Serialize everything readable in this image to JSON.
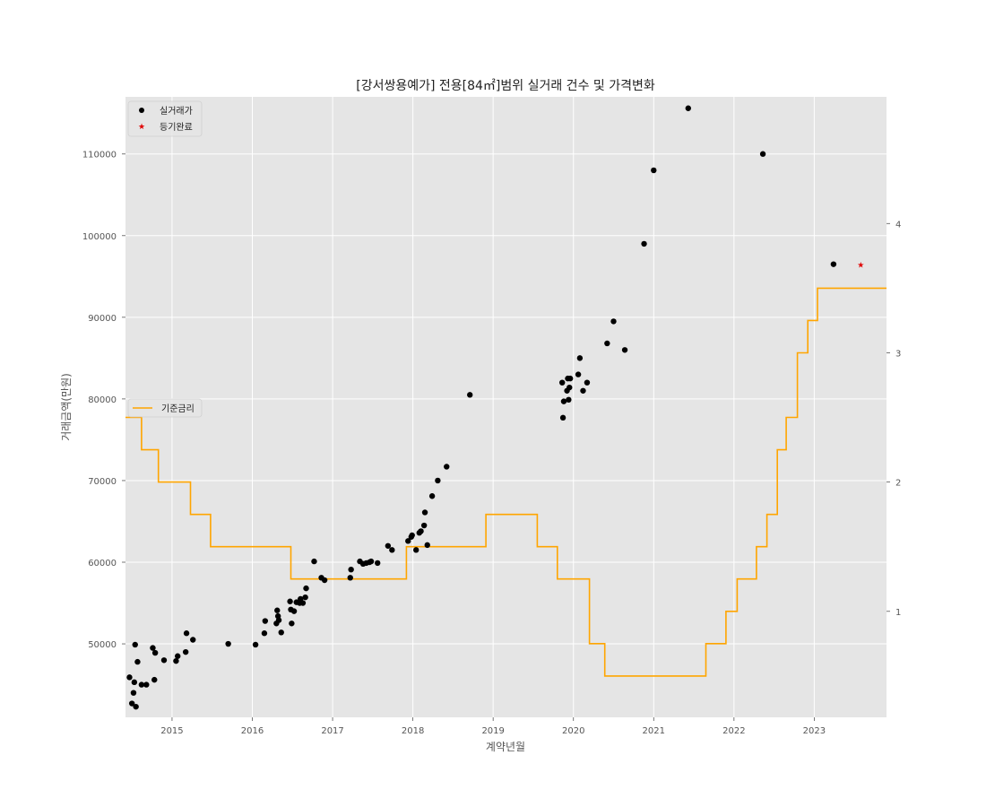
{
  "chart_data": {
    "type": "scatter",
    "title": "[강서쌍용예가] 전용[84㎡]범위 실거래 건수 및 가격변화",
    "xlabel": "계약년월",
    "ylabel": "거래금액(만원)",
    "xlim": [
      2014.42,
      2023.9
    ],
    "ylim": [
      41000,
      117000
    ],
    "y2lim": [
      0.18,
      4.98
    ],
    "xticks": [
      2015,
      2016,
      2017,
      2018,
      2019,
      2020,
      2021,
      2022,
      2023
    ],
    "xtick_labels": [
      "2015",
      "2016",
      "2017",
      "2018",
      "2019",
      "2020",
      "2021",
      "2022",
      "2023"
    ],
    "yticks": [
      50000,
      60000,
      70000,
      80000,
      90000,
      100000,
      110000
    ],
    "ytick_labels": [
      "50000",
      "60000",
      "70000",
      "80000",
      "90000",
      "100000",
      "110000"
    ],
    "y2ticks": [
      1,
      2,
      3,
      4
    ],
    "y2tick_labels": [
      "1",
      "2",
      "3",
      "4"
    ],
    "grid": true,
    "background": "#e5e5e5",
    "legend_top": {
      "placement": "top-left",
      "entries": [
        {
          "label": "실거래가",
          "marker": "circle",
          "color": "#000000"
        },
        {
          "label": "등기완료",
          "marker": "star",
          "color": "#e00000"
        }
      ]
    },
    "legend_mid": {
      "placement": "center-left",
      "entries": [
        {
          "label": "기준금리",
          "marker": "line",
          "color": "#ffa500"
        }
      ]
    },
    "series": [
      {
        "name": "실거래가",
        "type": "scatter",
        "color": "#000000",
        "points": [
          [
            2014.47,
            45900
          ],
          [
            2014.5,
            42700
          ],
          [
            2014.52,
            44000
          ],
          [
            2014.53,
            45300
          ],
          [
            2014.54,
            49900
          ],
          [
            2014.55,
            42300
          ],
          [
            2014.57,
            47800
          ],
          [
            2014.62,
            45000
          ],
          [
            2014.68,
            45000
          ],
          [
            2014.76,
            49500
          ],
          [
            2014.78,
            45600
          ],
          [
            2014.79,
            48900
          ],
          [
            2014.9,
            48000
          ],
          [
            2015.05,
            47900
          ],
          [
            2015.07,
            48500
          ],
          [
            2015.17,
            49000
          ],
          [
            2015.18,
            51300
          ],
          [
            2015.26,
            50500
          ],
          [
            2015.7,
            50000
          ],
          [
            2016.04,
            49900
          ],
          [
            2016.15,
            51300
          ],
          [
            2016.16,
            52800
          ],
          [
            2016.3,
            52500
          ],
          [
            2016.31,
            54100
          ],
          [
            2016.32,
            53400
          ],
          [
            2016.33,
            52900
          ],
          [
            2016.36,
            51400
          ],
          [
            2016.47,
            55200
          ],
          [
            2016.48,
            54200
          ],
          [
            2016.49,
            52500
          ],
          [
            2016.52,
            54000
          ],
          [
            2016.55,
            55100
          ],
          [
            2016.59,
            55000
          ],
          [
            2016.6,
            55500
          ],
          [
            2016.63,
            55000
          ],
          [
            2016.66,
            55700
          ],
          [
            2016.67,
            56800
          ],
          [
            2016.77,
            60100
          ],
          [
            2016.86,
            58100
          ],
          [
            2016.9,
            57800
          ],
          [
            2017.22,
            58100
          ],
          [
            2017.23,
            59100
          ],
          [
            2017.34,
            60100
          ],
          [
            2017.38,
            59800
          ],
          [
            2017.42,
            59900
          ],
          [
            2017.46,
            60000
          ],
          [
            2017.48,
            60100
          ],
          [
            2017.56,
            59900
          ],
          [
            2017.69,
            62000
          ],
          [
            2017.74,
            61500
          ],
          [
            2017.94,
            62600
          ],
          [
            2017.98,
            63100
          ],
          [
            2017.99,
            63300
          ],
          [
            2018.04,
            61500
          ],
          [
            2018.08,
            63600
          ],
          [
            2018.1,
            63800
          ],
          [
            2018.14,
            64500
          ],
          [
            2018.15,
            66100
          ],
          [
            2018.18,
            62100
          ],
          [
            2018.24,
            68100
          ],
          [
            2018.31,
            70000
          ],
          [
            2018.42,
            71700
          ],
          [
            2018.71,
            80500
          ],
          [
            2019.86,
            82000
          ],
          [
            2019.87,
            77700
          ],
          [
            2019.88,
            79700
          ],
          [
            2019.92,
            81000
          ],
          [
            2019.93,
            82500
          ],
          [
            2019.94,
            79900
          ],
          [
            2019.95,
            81400
          ],
          [
            2019.96,
            82500
          ],
          [
            2020.06,
            83000
          ],
          [
            2020.08,
            85000
          ],
          [
            2020.12,
            81000
          ],
          [
            2020.17,
            82000
          ],
          [
            2020.42,
            86800
          ],
          [
            2020.5,
            89500
          ],
          [
            2020.64,
            86000
          ],
          [
            2020.88,
            99000
          ],
          [
            2021.0,
            108000
          ],
          [
            2021.43,
            115600
          ],
          [
            2022.36,
            110000
          ],
          [
            2023.24,
            96500
          ]
        ]
      },
      {
        "name": "등기완료",
        "type": "scatter",
        "color": "#e00000",
        "points": [
          [
            2023.58,
            96400
          ]
        ]
      },
      {
        "name": "기준금리",
        "type": "step",
        "axis": "right",
        "color": "#ffa500",
        "points": [
          [
            2014.42,
            2.5
          ],
          [
            2014.62,
            2.25
          ],
          [
            2014.83,
            2.0
          ],
          [
            2015.23,
            1.75
          ],
          [
            2015.48,
            1.5
          ],
          [
            2016.48,
            1.25
          ],
          [
            2017.92,
            1.5
          ],
          [
            2018.91,
            1.75
          ],
          [
            2019.55,
            1.5
          ],
          [
            2019.8,
            1.25
          ],
          [
            2020.2,
            0.75
          ],
          [
            2020.39,
            0.5
          ],
          [
            2021.65,
            0.75
          ],
          [
            2021.9,
            1.0
          ],
          [
            2022.04,
            1.25
          ],
          [
            2022.28,
            1.5
          ],
          [
            2022.41,
            1.75
          ],
          [
            2022.54,
            2.25
          ],
          [
            2022.65,
            2.5
          ],
          [
            2022.79,
            3.0
          ],
          [
            2022.92,
            3.25
          ],
          [
            2023.04,
            3.5
          ],
          [
            2023.9,
            3.5
          ]
        ]
      }
    ]
  }
}
